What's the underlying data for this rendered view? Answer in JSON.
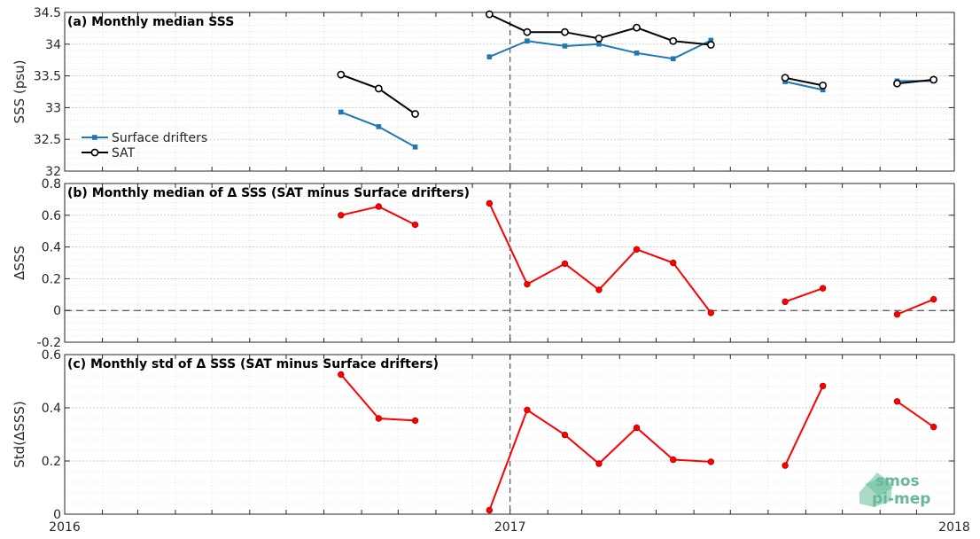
{
  "chart_data": [
    {
      "type": "line",
      "title": "(a) Monthly median SSS",
      "ylabel": "SSS (psu)",
      "xlim": [
        "2016-01-01",
        "2018-01-01"
      ],
      "ylim": [
        32,
        34.5
      ],
      "yticks": [
        32,
        32.5,
        33,
        33.5,
        34,
        34.5
      ],
      "yticklabels": [
        "32",
        "32.5",
        "33",
        "33.5",
        "34",
        "34.5"
      ],
      "xticklabels": [
        "2016",
        "2017",
        "2018"
      ],
      "grid": true,
      "legend_position": "lower-left",
      "series": [
        {
          "name": "Surface drifters",
          "color": "#1f77b4",
          "marker": "square",
          "x": [
            "2016-08-15",
            "2016-09-15",
            "2016-10-15",
            "2016-11-15",
            "2016-12-15",
            "2017-01-15",
            "2017-02-15",
            "2017-03-15",
            "2017-04-15",
            "2017-05-15",
            "2017-06-15",
            "2017-07-15",
            "2017-08-15",
            "2017-09-15",
            "2017-10-15",
            "2017-11-15",
            "2017-12-15"
          ],
          "values": [
            32.93,
            32.7,
            32.38,
            null,
            33.8,
            34.05,
            33.97,
            34.0,
            33.86,
            33.77,
            34.06,
            null,
            33.41,
            33.28,
            null,
            33.42,
            33.42
          ]
        },
        {
          "name": "SAT",
          "color": "#000000",
          "marker": "circle",
          "x": [
            "2016-08-15",
            "2016-09-15",
            "2016-10-15",
            "2016-11-15",
            "2016-12-15",
            "2017-01-15",
            "2017-02-15",
            "2017-03-15",
            "2017-04-15",
            "2017-05-15",
            "2017-06-15",
            "2017-07-15",
            "2017-08-15",
            "2017-09-15",
            "2017-10-15",
            "2017-11-15",
            "2017-12-15"
          ],
          "values": [
            33.52,
            33.3,
            32.9,
            null,
            34.47,
            34.19,
            34.19,
            34.09,
            34.26,
            34.05,
            33.99,
            null,
            33.47,
            33.35,
            null,
            33.38,
            33.44
          ]
        }
      ]
    },
    {
      "type": "line",
      "title": "(b) Monthly median of Δ SSS (SAT minus Surface drifters)",
      "ylabel": "ΔSSS",
      "xlim": [
        "2016-01-01",
        "2018-01-01"
      ],
      "ylim": [
        -0.2,
        0.8
      ],
      "yticks": [
        -0.2,
        0,
        0.2,
        0.4,
        0.6,
        0.8
      ],
      "yticklabels": [
        "-0.2",
        "0",
        "0.2",
        "0.4",
        "0.6",
        "0.8"
      ],
      "xticklabels": [
        "2016",
        "2017",
        "2018"
      ],
      "grid": true,
      "series": [
        {
          "color": "#ff0000",
          "marker": "circle",
          "x": [
            "2016-08-15",
            "2016-09-15",
            "2016-10-15",
            "2016-11-15",
            "2016-12-15",
            "2017-01-15",
            "2017-02-15",
            "2017-03-15",
            "2017-04-15",
            "2017-05-15",
            "2017-06-15",
            "2017-07-15",
            "2017-08-15",
            "2017-09-15",
            "2017-10-15",
            "2017-11-15",
            "2017-12-15"
          ],
          "values": [
            0.6,
            0.655,
            0.54,
            null,
            0.675,
            0.165,
            0.295,
            0.13,
            0.385,
            0.3,
            -0.015,
            null,
            0.055,
            0.14,
            null,
            -0.025,
            0.07
          ]
        }
      ]
    },
    {
      "type": "line",
      "title": "(c) Monthly std of Δ SSS (SAT minus Surface drifters)",
      "ylabel": "Std(ΔSSS)",
      "xlim": [
        "2016-01-01",
        "2018-01-01"
      ],
      "ylim": [
        0,
        0.6
      ],
      "yticks": [
        0,
        0.2,
        0.4,
        0.6
      ],
      "yticklabels": [
        "0",
        "0.2",
        "0.4",
        "0.6"
      ],
      "xticklabels": [
        "2016",
        "2017",
        "2018"
      ],
      "grid": true,
      "series": [
        {
          "color": "#ff0000",
          "marker": "circle",
          "x": [
            "2016-08-15",
            "2016-09-15",
            "2016-10-15",
            "2016-11-15",
            "2016-12-15",
            "2017-01-15",
            "2017-02-15",
            "2017-03-15",
            "2017-04-15",
            "2017-05-15",
            "2017-06-15",
            "2017-07-15",
            "2017-08-15",
            "2017-09-15",
            "2017-10-15",
            "2017-11-15",
            "2017-12-15"
          ],
          "values": [
            0.525,
            0.36,
            0.352,
            null,
            0.015,
            0.392,
            0.298,
            0.19,
            0.325,
            0.205,
            0.197,
            null,
            0.183,
            0.482,
            null,
            0.424,
            0.328
          ]
        }
      ]
    }
  ],
  "logo": {
    "line1": "smos",
    "line2": "pi-mep"
  }
}
